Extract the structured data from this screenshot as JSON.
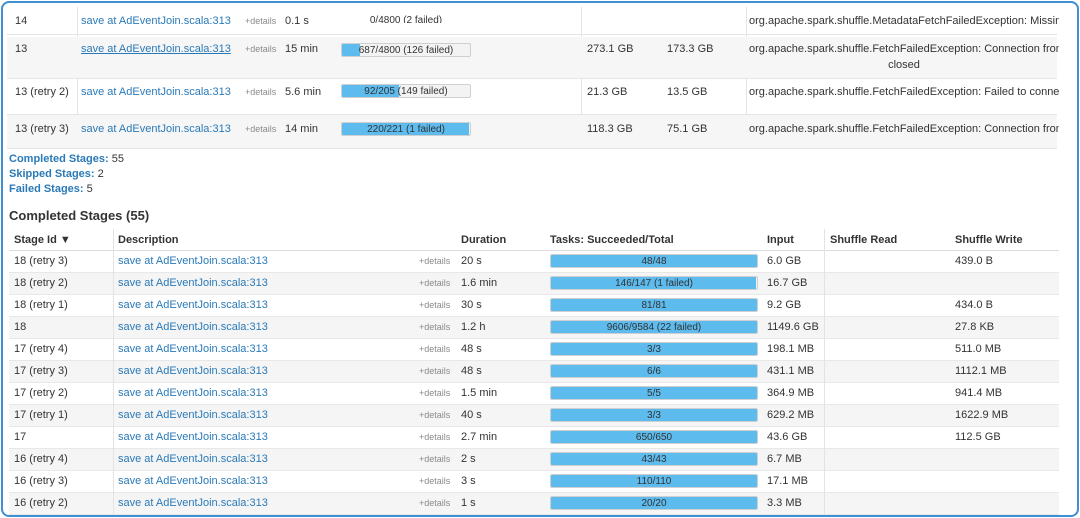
{
  "failed_stages": [
    {
      "stage_id": "14",
      "description": "save at AdEventJoin.scala:313",
      "details": "+details",
      "duration": "0.1 s",
      "tasks_label": "0/4800 (2 failed)",
      "progress": 0.0,
      "input": "",
      "shuffle_read": "",
      "error": "org.apache.spark.shuffle.MetadataFetchFailedException: Missing",
      "error_cont": ""
    },
    {
      "stage_id": "13",
      "description": "save at AdEventJoin.scala:313",
      "details": "+details",
      "duration": "15 min",
      "tasks_label": "687/4800 (126 failed)",
      "progress": 0.143,
      "input": "273.1 GB",
      "shuffle_read": "173.3 GB",
      "error": "org.apache.spark.shuffle.FetchFailedException: Connection from",
      "error_cont": "closed"
    },
    {
      "stage_id": "13 (retry 2)",
      "description": "save at AdEventJoin.scala:313",
      "details": "+details",
      "duration": "5.6 min",
      "tasks_label": "92/205 (149 failed)",
      "progress": 0.449,
      "input": "21.3 GB",
      "shuffle_read": "13.5 GB",
      "error": "org.apache.spark.shuffle.FetchFailedException: Failed to connect",
      "error_cont": ""
    },
    {
      "stage_id": "13 (retry 3)",
      "description": "save at AdEventJoin.scala:313",
      "details": "+details",
      "duration": "14 min",
      "tasks_label": "220/221 (1 failed)",
      "progress": 0.995,
      "input": "118.3 GB",
      "shuffle_read": "75.1 GB",
      "error": "org.apache.spark.shuffle.FetchFailedException: Connection from",
      "error_cont": ""
    }
  ],
  "summary": {
    "completed_label": "Completed Stages:",
    "completed_count": "55",
    "skipped_label": "Skipped Stages:",
    "skipped_count": "2",
    "failed_label": "Failed Stages:",
    "failed_count": "5"
  },
  "completed_title": "Completed Stages (55)",
  "columns": {
    "stage_id": "Stage Id ▼",
    "description": "Description",
    "duration": "Duration",
    "tasks": "Tasks: Succeeded/Total",
    "input": "Input",
    "shuffle_read": "Shuffle Read",
    "shuffle_write": "Shuffle Write"
  },
  "completed_stages": [
    {
      "stage_id": "18 (retry 3)",
      "description": "save at AdEventJoin.scala:313",
      "details": "+details",
      "duration": "20 s",
      "tasks_label": "48/48",
      "progress": 1.0,
      "input": "6.0 GB",
      "shuffle_read": "",
      "shuffle_write": "439.0 B"
    },
    {
      "stage_id": "18 (retry 2)",
      "description": "save at AdEventJoin.scala:313",
      "details": "+details",
      "duration": "1.6 min",
      "tasks_label": "146/147 (1 failed)",
      "progress": 0.993,
      "input": "16.7 GB",
      "shuffle_read": "",
      "shuffle_write": ""
    },
    {
      "stage_id": "18 (retry 1)",
      "description": "save at AdEventJoin.scala:313",
      "details": "+details",
      "duration": "30 s",
      "tasks_label": "81/81",
      "progress": 1.0,
      "input": "9.2 GB",
      "shuffle_read": "",
      "shuffle_write": "434.0 B"
    },
    {
      "stage_id": "18",
      "description": "save at AdEventJoin.scala:313",
      "details": "+details",
      "duration": "1.2 h",
      "tasks_label": "9606/9584 (22 failed)",
      "progress": 1.0,
      "input": "1149.6 GB",
      "shuffle_read": "",
      "shuffle_write": "27.8 KB"
    },
    {
      "stage_id": "17 (retry 4)",
      "description": "save at AdEventJoin.scala:313",
      "details": "+details",
      "duration": "48 s",
      "tasks_label": "3/3",
      "progress": 1.0,
      "input": "198.1 MB",
      "shuffle_read": "",
      "shuffle_write": "511.0 MB"
    },
    {
      "stage_id": "17 (retry 3)",
      "description": "save at AdEventJoin.scala:313",
      "details": "+details",
      "duration": "48 s",
      "tasks_label": "6/6",
      "progress": 1.0,
      "input": "431.1 MB",
      "shuffle_read": "",
      "shuffle_write": "1112.1 MB"
    },
    {
      "stage_id": "17 (retry 2)",
      "description": "save at AdEventJoin.scala:313",
      "details": "+details",
      "duration": "1.5 min",
      "tasks_label": "5/5",
      "progress": 1.0,
      "input": "364.9 MB",
      "shuffle_read": "",
      "shuffle_write": "941.4 MB"
    },
    {
      "stage_id": "17 (retry 1)",
      "description": "save at AdEventJoin.scala:313",
      "details": "+details",
      "duration": "40 s",
      "tasks_label": "3/3",
      "progress": 1.0,
      "input": "629.2 MB",
      "shuffle_read": "",
      "shuffle_write": "1622.9 MB"
    },
    {
      "stage_id": "17",
      "description": "save at AdEventJoin.scala:313",
      "details": "+details",
      "duration": "2.7 min",
      "tasks_label": "650/650",
      "progress": 1.0,
      "input": "43.6 GB",
      "shuffle_read": "",
      "shuffle_write": "112.5 GB"
    },
    {
      "stage_id": "16 (retry 4)",
      "description": "save at AdEventJoin.scala:313",
      "details": "+details",
      "duration": "2 s",
      "tasks_label": "43/43",
      "progress": 1.0,
      "input": "6.7 MB",
      "shuffle_read": "",
      "shuffle_write": ""
    },
    {
      "stage_id": "16 (retry 3)",
      "description": "save at AdEventJoin.scala:313",
      "details": "+details",
      "duration": "3 s",
      "tasks_label": "110/110",
      "progress": 1.0,
      "input": "17.1 MB",
      "shuffle_read": "",
      "shuffle_write": ""
    },
    {
      "stage_id": "16 (retry 2)",
      "description": "save at AdEventJoin.scala:313",
      "details": "+details",
      "duration": "1 s",
      "tasks_label": "20/20",
      "progress": 1.0,
      "input": "3.3 MB",
      "shuffle_read": "",
      "shuffle_write": ""
    }
  ],
  "colors": {
    "accent": "#3f8fd2",
    "link": "#2a7ab8",
    "progress_fill": "#5dbbee"
  }
}
